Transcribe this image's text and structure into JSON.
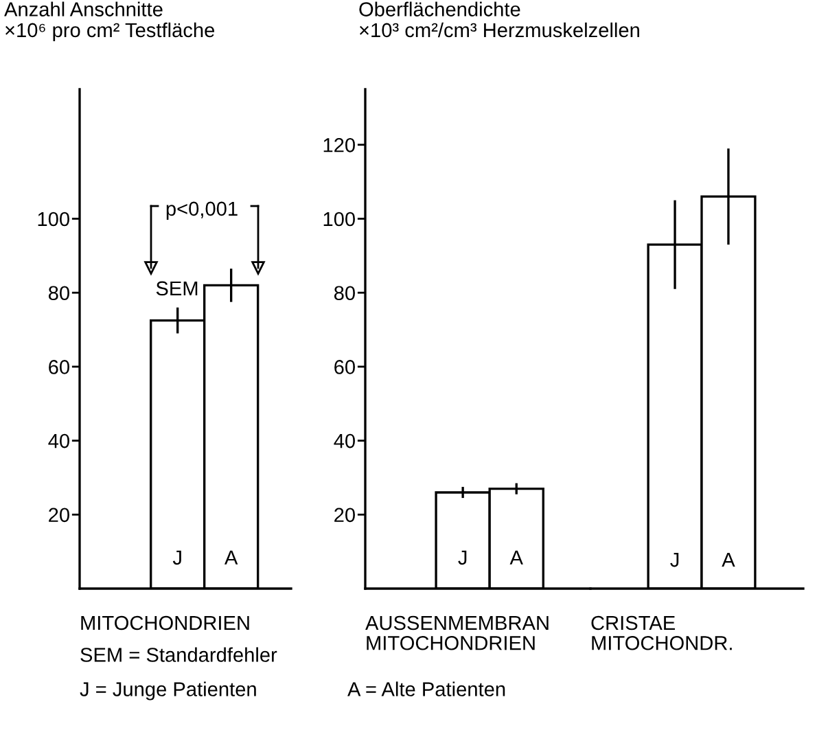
{
  "chart_data": [
    {
      "type": "bar",
      "ylabel": "Anzahl Anschnitte\n×10⁶ pro cm² Testfläche",
      "xlabel": "MITOCHONDRIEN",
      "categories": [
        "J",
        "A"
      ],
      "values": [
        72.5,
        82
      ],
      "errors": [
        3.5,
        4.5
      ],
      "color": "#ffffff",
      "ylim": [
        0,
        135
      ],
      "yticks": [
        20,
        40,
        60,
        80,
        100
      ],
      "annotations": [
        "p<0,001",
        "SEM",
        "SEM = Standardfehler",
        "J = Junge Patienten",
        "A = Alte Patienten"
      ]
    },
    {
      "type": "bar",
      "ylabel": "Oberflächendichte\n×10³ cm²/cm³ Herzmuskelzellen",
      "xlabel": "AUSSENMEMBRAN\nMITOCHONDRIEN",
      "categories": [
        "J",
        "A"
      ],
      "values": [
        26,
        27
      ],
      "errors": [
        1.5,
        1.5
      ],
      "color": "#ffffff",
      "ylim": [
        0,
        135
      ],
      "yticks": [
        20,
        40,
        60,
        80,
        100,
        120
      ]
    },
    {
      "type": "bar",
      "xlabel": "CRISTAE\nMITOCHONDR.",
      "categories": [
        "J",
        "A"
      ],
      "values": [
        93,
        106
      ],
      "errors": [
        12,
        13
      ],
      "color": "#ffffff",
      "ylim": [
        0,
        120
      ],
      "yticks": [
        20,
        40,
        60,
        80,
        100,
        120
      ],
      "tick_labels": false
    }
  ]
}
